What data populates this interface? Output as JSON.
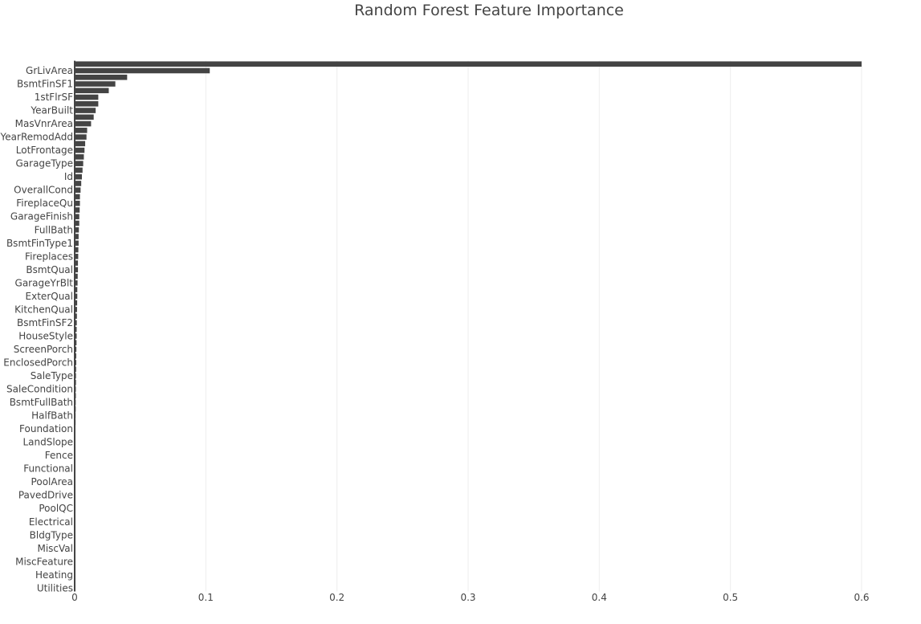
{
  "chart_data": {
    "type": "bar",
    "orientation": "horizontal",
    "title": "Random Forest Feature Importance",
    "xlabel": "",
    "ylabel": "",
    "xlim": [
      0,
      0.6
    ],
    "x_ticks": [
      0,
      0.1,
      0.2,
      0.3,
      0.4,
      0.5,
      0.6
    ],
    "x_tick_labels": [
      "0",
      "0.1",
      "0.2",
      "0.3",
      "0.4",
      "0.5",
      "0.6"
    ],
    "grid": "vertical",
    "bar_color": "#444444",
    "categories": [
      "",
      "GrLivArea",
      "",
      "BsmtFinSF1",
      "",
      "1stFlrSF",
      "",
      "YearBuilt",
      "",
      "MasVnrArea",
      "",
      "YearRemodAdd",
      "",
      "LotFrontage",
      "",
      "GarageType",
      "",
      "Id",
      "",
      "OverallCond",
      "",
      "FireplaceQu",
      "",
      "GarageFinish",
      "",
      "FullBath",
      "",
      "BsmtFinType1",
      "",
      "Fireplaces",
      "",
      "BsmtQual",
      "",
      "GarageYrBlt",
      "",
      "ExterQual",
      "",
      "KitchenQual",
      "",
      "BsmtFinSF2",
      "",
      "HouseStyle",
      "",
      "ScreenPorch",
      "",
      "EnclosedPorch",
      "",
      "SaleType",
      "",
      "SaleCondition",
      "",
      "BsmtFullBath",
      "",
      "HalfBath",
      "",
      "Foundation",
      "",
      "LandSlope",
      "",
      "Fence",
      "",
      "Functional",
      "",
      "PoolArea",
      "",
      "PavedDrive",
      "",
      "PoolQC",
      "",
      "Electrical",
      "",
      "BldgType",
      "",
      "MiscVal",
      "",
      "MiscFeature",
      "",
      "Heating",
      "",
      "Utilities"
    ],
    "values": [
      0.6,
      0.103,
      0.04,
      0.031,
      0.026,
      0.018,
      0.018,
      0.016,
      0.0145,
      0.0125,
      0.0095,
      0.009,
      0.008,
      0.0075,
      0.007,
      0.0065,
      0.006,
      0.0055,
      0.005,
      0.0045,
      0.004,
      0.004,
      0.0038,
      0.0035,
      0.0035,
      0.0032,
      0.003,
      0.003,
      0.0028,
      0.0027,
      0.0025,
      0.0025,
      0.0023,
      0.0022,
      0.002,
      0.002,
      0.0019,
      0.0018,
      0.0017,
      0.0016,
      0.0015,
      0.0015,
      0.0014,
      0.0013,
      0.0012,
      0.0012,
      0.0011,
      0.001,
      0.001,
      0.0009,
      0.0009,
      0.0008,
      0.0008,
      0.0007,
      0.0007,
      0.0006,
      0.0006,
      0.0005,
      0.0005,
      0.0005,
      0.0004,
      0.0004,
      0.0004,
      0.0003,
      0.0003,
      0.0003,
      0.0003,
      0.0002,
      0.0002,
      0.0002,
      0.0002,
      0.0001,
      0.0001,
      0.0001,
      0.0001,
      0.0001,
      0.0001,
      0.0001,
      0.0001,
      0.0001
    ]
  }
}
